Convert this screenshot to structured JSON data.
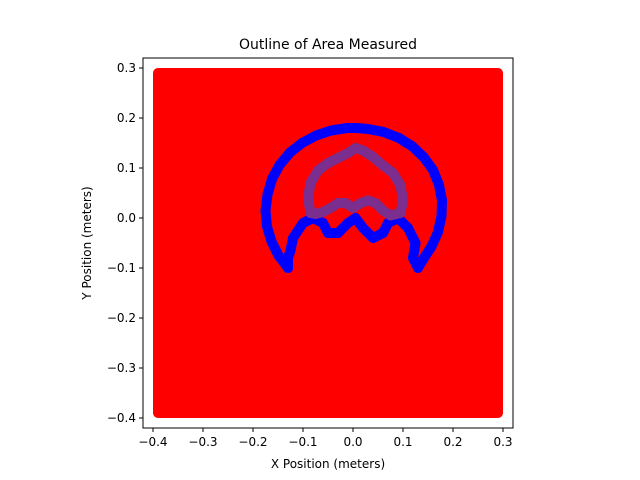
{
  "chart_data": {
    "type": "scatter",
    "title": "Outline of Area Measured",
    "xlabel": "X Position (meters)",
    "ylabel": "Y Position (meters)",
    "xlim": [
      -0.42,
      0.32
    ],
    "ylim": [
      -0.42,
      0.32
    ],
    "xticks": [
      -0.4,
      -0.3,
      -0.2,
      -0.1,
      0.0,
      0.1,
      0.2,
      0.3
    ],
    "xtick_labels": [
      "−0.4",
      "−0.3",
      "−0.2",
      "−0.1",
      "0.0",
      "0.1",
      "0.2",
      "0.3"
    ],
    "yticks": [
      -0.4,
      -0.3,
      -0.2,
      -0.1,
      0.0,
      0.1,
      0.2,
      0.3
    ],
    "ytick_labels": [
      "−0.4",
      "−0.3",
      "−0.2",
      "−0.1",
      "0.0",
      "0.1",
      "0.2",
      "0.3"
    ],
    "grid": false,
    "legend": "none",
    "series": [
      {
        "color": "#ff0000",
        "kind": "filled-grid",
        "x_range": [
          -0.39,
          0.29
        ],
        "y_range": [
          -0.39,
          0.29
        ],
        "values": [
          [
            -0.39,
            -0.39
          ],
          [
            0.29,
            -0.39
          ],
          [
            0.29,
            0.29
          ],
          [
            -0.39,
            0.29
          ]
        ]
      },
      {
        "color": "#0000ff",
        "kind": "outline",
        "values": [
          [
            -0.13,
            -0.1
          ],
          [
            -0.149,
            -0.075
          ],
          [
            -0.163,
            -0.047
          ],
          [
            -0.172,
            -0.017
          ],
          [
            -0.175,
            0.015
          ],
          [
            -0.171,
            0.047
          ],
          [
            -0.162,
            0.078
          ],
          [
            -0.147,
            0.106
          ],
          [
            -0.126,
            0.131
          ],
          [
            -0.102,
            0.15
          ],
          [
            -0.074,
            0.165
          ],
          [
            -0.044,
            0.175
          ],
          [
            -0.012,
            0.18
          ],
          [
            0.008,
            0.18
          ],
          [
            0.03,
            0.178
          ],
          [
            0.061,
            0.172
          ],
          [
            0.092,
            0.16
          ],
          [
            0.119,
            0.143
          ],
          [
            0.142,
            0.121
          ],
          [
            0.16,
            0.096
          ],
          [
            0.172,
            0.066
          ],
          [
            0.178,
            0.035
          ],
          [
            0.177,
            0.004
          ],
          [
            0.17,
            -0.028
          ],
          [
            0.157,
            -0.057
          ],
          [
            0.14,
            -0.083
          ],
          [
            0.13,
            -0.1
          ],
          [
            0.12,
            -0.08
          ],
          [
            0.125,
            -0.05
          ],
          [
            0.11,
            -0.02
          ],
          [
            0.09,
            0.0
          ],
          [
            0.07,
            -0.01
          ],
          [
            0.06,
            -0.03
          ],
          [
            0.04,
            -0.04
          ],
          [
            0.02,
            -0.02
          ],
          [
            0.005,
            0.0
          ],
          [
            -0.01,
            -0.01
          ],
          [
            -0.03,
            -0.03
          ],
          [
            -0.05,
            -0.03
          ],
          [
            -0.06,
            -0.01
          ],
          [
            -0.08,
            0.0
          ],
          [
            -0.1,
            -0.01
          ],
          [
            -0.12,
            -0.04
          ],
          [
            -0.125,
            -0.065
          ],
          [
            -0.13,
            -0.08
          ],
          [
            -0.13,
            -0.1
          ]
        ]
      },
      {
        "color": "#7b2e8e",
        "kind": "outline",
        "values": [
          [
            -0.085,
            0.01
          ],
          [
            -0.09,
            0.04
          ],
          [
            -0.085,
            0.07
          ],
          [
            -0.07,
            0.095
          ],
          [
            -0.05,
            0.11
          ],
          [
            -0.03,
            0.12
          ],
          [
            -0.01,
            0.13
          ],
          [
            0.005,
            0.14
          ],
          [
            0.02,
            0.135
          ],
          [
            0.04,
            0.122
          ],
          [
            0.06,
            0.105
          ],
          [
            0.08,
            0.09
          ],
          [
            0.095,
            0.065
          ],
          [
            0.1,
            0.035
          ],
          [
            0.095,
            0.01
          ],
          [
            0.075,
            0.005
          ],
          [
            0.06,
            0.015
          ],
          [
            0.045,
            0.03
          ],
          [
            0.03,
            0.035
          ],
          [
            0.015,
            0.03
          ],
          [
            0.0,
            0.02
          ],
          [
            -0.015,
            0.03
          ],
          [
            -0.03,
            0.03
          ],
          [
            -0.045,
            0.02
          ],
          [
            -0.06,
            0.012
          ],
          [
            -0.075,
            0.008
          ],
          [
            -0.085,
            0.01
          ]
        ]
      }
    ]
  }
}
